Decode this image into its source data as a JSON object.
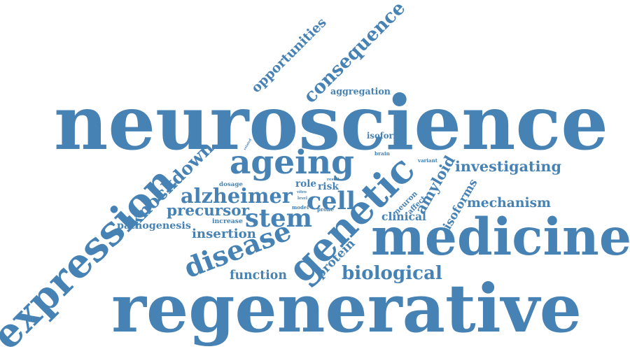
{
  "cloud": {
    "color": "#4682b4",
    "words": [
      {
        "id": "neuroscience",
        "text": "neuroscience"
      },
      {
        "id": "regenerative",
        "text": "regenerative"
      },
      {
        "id": "medicine",
        "text": "medicine"
      },
      {
        "id": "expression",
        "text": "expression"
      },
      {
        "id": "genetic",
        "text": "genetic"
      },
      {
        "id": "ageing",
        "text": "ageing"
      },
      {
        "id": "disease",
        "text": "disease"
      },
      {
        "id": "alzheimer",
        "text": "alzheimer"
      },
      {
        "id": "stem",
        "text": "stem"
      },
      {
        "id": "cell",
        "text": "cell"
      },
      {
        "id": "consequence",
        "text": "consequence"
      },
      {
        "id": "opportunities",
        "text": "opportunities"
      },
      {
        "id": "knockdown",
        "text": "knockdown"
      },
      {
        "id": "precursor",
        "text": "precursor"
      },
      {
        "id": "insertion",
        "text": "insertion"
      },
      {
        "id": "pathogenesis",
        "text": "pathogenesis"
      },
      {
        "id": "biological",
        "text": "biological"
      },
      {
        "id": "function",
        "text": "function"
      },
      {
        "id": "protein",
        "text": "protein"
      },
      {
        "id": "amyloid",
        "text": "amyloid"
      },
      {
        "id": "isoforms",
        "text": "isoforms"
      },
      {
        "id": "investigating",
        "text": "investigating"
      },
      {
        "id": "mechanism",
        "text": "mechanism"
      },
      {
        "id": "clinical",
        "text": "clinical"
      },
      {
        "id": "aggregation",
        "text": "aggregation"
      },
      {
        "id": "isoform",
        "text": "isoform"
      },
      {
        "id": "brain",
        "text": "brain"
      },
      {
        "id": "variant",
        "text": "variant"
      },
      {
        "id": "role",
        "text": "role"
      },
      {
        "id": "risk",
        "text": "risk"
      },
      {
        "id": "dosage",
        "text": "dosage"
      },
      {
        "id": "result",
        "text": "result"
      },
      {
        "id": "increase",
        "text": "increase"
      },
      {
        "id": "neuron",
        "text": "neuron"
      },
      {
        "id": "affect",
        "text": "affect"
      },
      {
        "id": "related",
        "text": "related"
      },
      {
        "id": "vitro",
        "text": "vitro"
      },
      {
        "id": "level",
        "text": "level"
      },
      {
        "id": "model",
        "text": "model"
      },
      {
        "id": "prone",
        "text": "prone"
      }
    ]
  }
}
